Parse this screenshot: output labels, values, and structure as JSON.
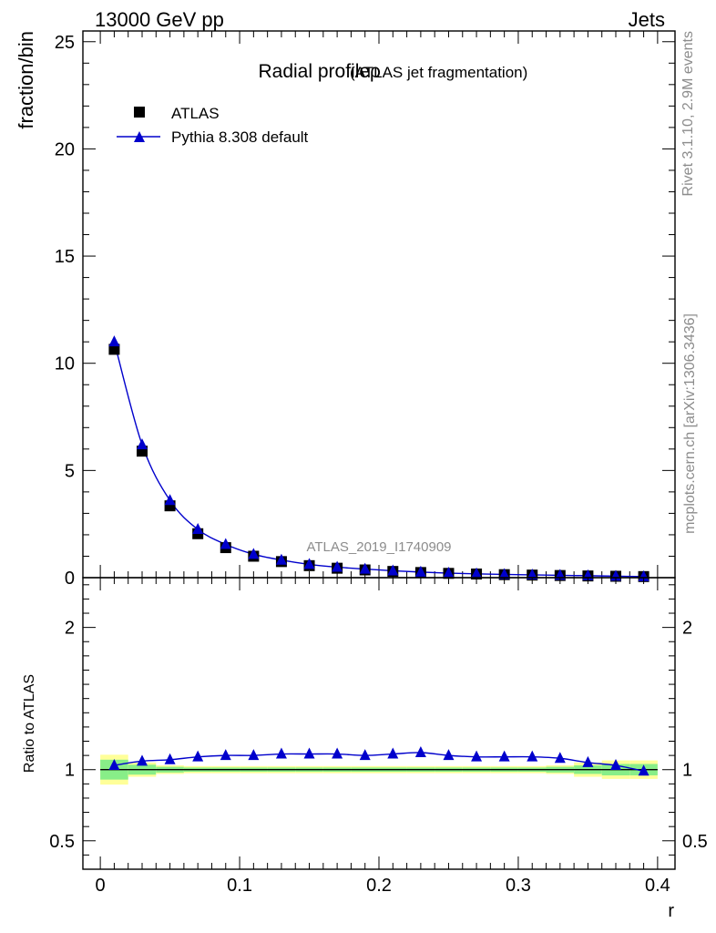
{
  "header": {
    "energy_label": "13000 GeV pp",
    "process_label": "Jets"
  },
  "side_labels": {
    "rivet": "Rivet 3.1.10,  2.9M events",
    "mcplots": "mcplots.cern.ch [arXiv:1306.3436]"
  },
  "colors": {
    "data": "#000000",
    "mc": "#0000cc",
    "band_inner": "#88ee88",
    "band_outer": "#ffff99"
  },
  "chart_data": [
    {
      "type": "scatter",
      "title": "Radial profileρ",
      "subtitle": "(ATLAS jet fragmentation)",
      "watermark": "ATLAS_2019_I1740909",
      "ylabel": "fraction/bin",
      "xlim": [
        -0.0125,
        0.4125
      ],
      "ylim": [
        0,
        25.5
      ],
      "yticks": [
        0,
        5,
        10,
        15,
        20,
        25
      ],
      "ytick_labels": [
        "0",
        "5",
        "10",
        "15",
        "20",
        "25"
      ],
      "legend_position": "top-left",
      "x": [
        0.01,
        0.03,
        0.05,
        0.07,
        0.09,
        0.11,
        0.13,
        0.15,
        0.17,
        0.19,
        0.21,
        0.23,
        0.25,
        0.27,
        0.29,
        0.31,
        0.33,
        0.35,
        0.37,
        0.39
      ],
      "series": [
        {
          "name": "ATLAS",
          "marker": "square",
          "values": [
            10.65,
            5.9,
            3.35,
            2.05,
            1.4,
            1.0,
            0.75,
            0.56,
            0.44,
            0.36,
            0.29,
            0.24,
            0.2,
            0.17,
            0.14,
            0.12,
            0.1,
            0.08,
            0.065,
            0.05
          ]
        },
        {
          "name": "Pythia 8.308 default",
          "marker": "triangle",
          "values": [
            11.0,
            6.2,
            3.6,
            2.25,
            1.55,
            1.09,
            0.82,
            0.62,
            0.49,
            0.4,
            0.32,
            0.26,
            0.21,
            0.18,
            0.15,
            0.13,
            0.11,
            0.09,
            0.07,
            0.05
          ]
        }
      ]
    },
    {
      "type": "scatter",
      "ylabel": "Ratio to ATLAS",
      "xlabel": "r",
      "xlim": [
        -0.0125,
        0.4125
      ],
      "ylim": [
        0.3,
        2.35
      ],
      "yticks": [
        0.5,
        1,
        2
      ],
      "ytick_labels": [
        "0.5",
        "1",
        "2"
      ],
      "xticks": [
        0,
        0.1,
        0.2,
        0.3,
        0.4
      ],
      "xtick_labels": [
        "0",
        "0.1",
        "0.2",
        "0.3",
        "0.4"
      ],
      "reference_line": 1,
      "x": [
        0.01,
        0.03,
        0.05,
        0.07,
        0.09,
        0.11,
        0.13,
        0.15,
        0.17,
        0.19,
        0.21,
        0.23,
        0.25,
        0.27,
        0.29,
        0.31,
        0.33,
        0.35,
        0.37,
        0.39
      ],
      "bands": {
        "bin_edges": [
          0.0,
          0.02,
          0.04,
          0.06,
          0.08,
          0.1,
          0.12,
          0.14,
          0.16,
          0.18,
          0.2,
          0.22,
          0.24,
          0.26,
          0.28,
          0.3,
          0.32,
          0.34,
          0.36,
          0.38,
          0.4
        ],
        "outer_half_width": [
          0.105,
          0.05,
          0.03,
          0.025,
          0.025,
          0.025,
          0.025,
          0.025,
          0.025,
          0.025,
          0.025,
          0.025,
          0.025,
          0.025,
          0.025,
          0.025,
          0.03,
          0.05,
          0.065,
          0.065
        ],
        "inner_half_width": [
          0.07,
          0.035,
          0.02,
          0.015,
          0.015,
          0.015,
          0.015,
          0.015,
          0.015,
          0.015,
          0.015,
          0.015,
          0.015,
          0.015,
          0.015,
          0.015,
          0.02,
          0.03,
          0.04,
          0.04
        ]
      },
      "series": [
        {
          "name": "Pythia 8.308 default",
          "marker": "triangle",
          "values": [
            1.03,
            1.06,
            1.07,
            1.09,
            1.1,
            1.1,
            1.11,
            1.11,
            1.11,
            1.1,
            1.11,
            1.12,
            1.1,
            1.09,
            1.09,
            1.09,
            1.08,
            1.05,
            1.03,
            0.99
          ]
        }
      ]
    }
  ]
}
